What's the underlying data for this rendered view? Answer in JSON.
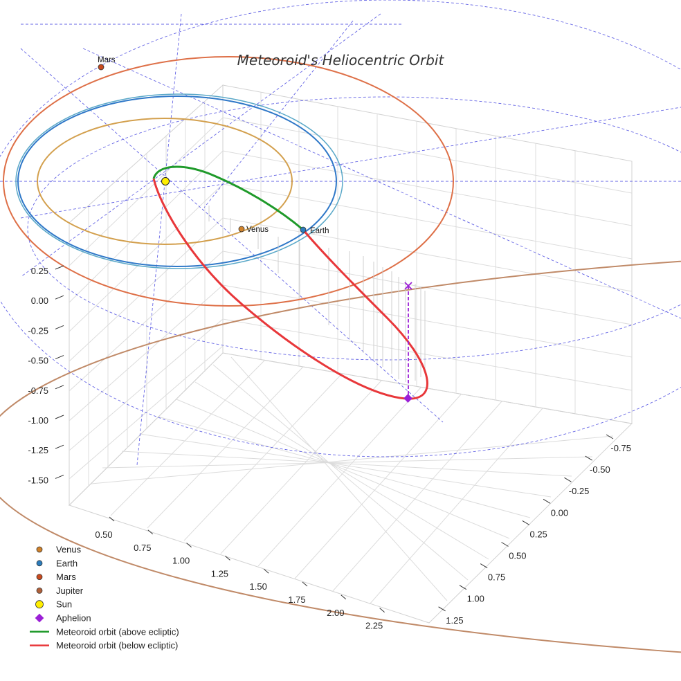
{
  "chart_data": {
    "type": "3d-orbit",
    "title": "Meteoroid's Heliocentric Orbit",
    "axes": {
      "x_ticks": [
        "0.50",
        "0.75",
        "1.00",
        "1.25",
        "1.50",
        "1.75",
        "2.00",
        "2.25"
      ],
      "y_ticks": [
        "-0.75",
        "-0.50",
        "-0.25",
        "0.00",
        "0.25",
        "0.50",
        "0.75",
        "1.00",
        "1.25"
      ],
      "z_ticks": [
        "0.25",
        "0.00",
        "-0.25",
        "-0.50",
        "-0.75",
        "-1.00",
        "-1.25",
        "-1.50"
      ]
    },
    "planet_labels": {
      "mars": "Mars",
      "venus": "Venus",
      "earth": "Earth"
    },
    "legend": [
      {
        "label": "Venus",
        "marker": "circle",
        "color": "#d0822b"
      },
      {
        "label": "Earth",
        "marker": "circle",
        "color": "#2c7cbb"
      },
      {
        "label": "Mars",
        "marker": "circle",
        "color": "#c94a1e"
      },
      {
        "label": "Jupiter",
        "marker": "circle",
        "color": "#b0603a"
      },
      {
        "label": "Sun",
        "marker": "circle",
        "color": "#ffee00"
      },
      {
        "label": "Aphelion",
        "marker": "diamond",
        "color": "#9b1fd6"
      },
      {
        "label": "Meteoroid orbit (above ecliptic)",
        "marker": "line",
        "color": "#1f9a2a"
      },
      {
        "label": "Meteoroid orbit (below ecliptic)",
        "marker": "line",
        "color": "#e8373a"
      }
    ],
    "colors": {
      "venus_orbit": "#d3a04e",
      "earth_orbit": "#2f78c8",
      "earth_orbit_alt": "#5aa8c8",
      "mars_orbit": "#de7048",
      "jupiter_orbit": "#c08a68",
      "above": "#1f9a2a",
      "below": "#e8373a",
      "aphelion": "#9b1fd6",
      "reference": "#4a4ae0"
    }
  }
}
